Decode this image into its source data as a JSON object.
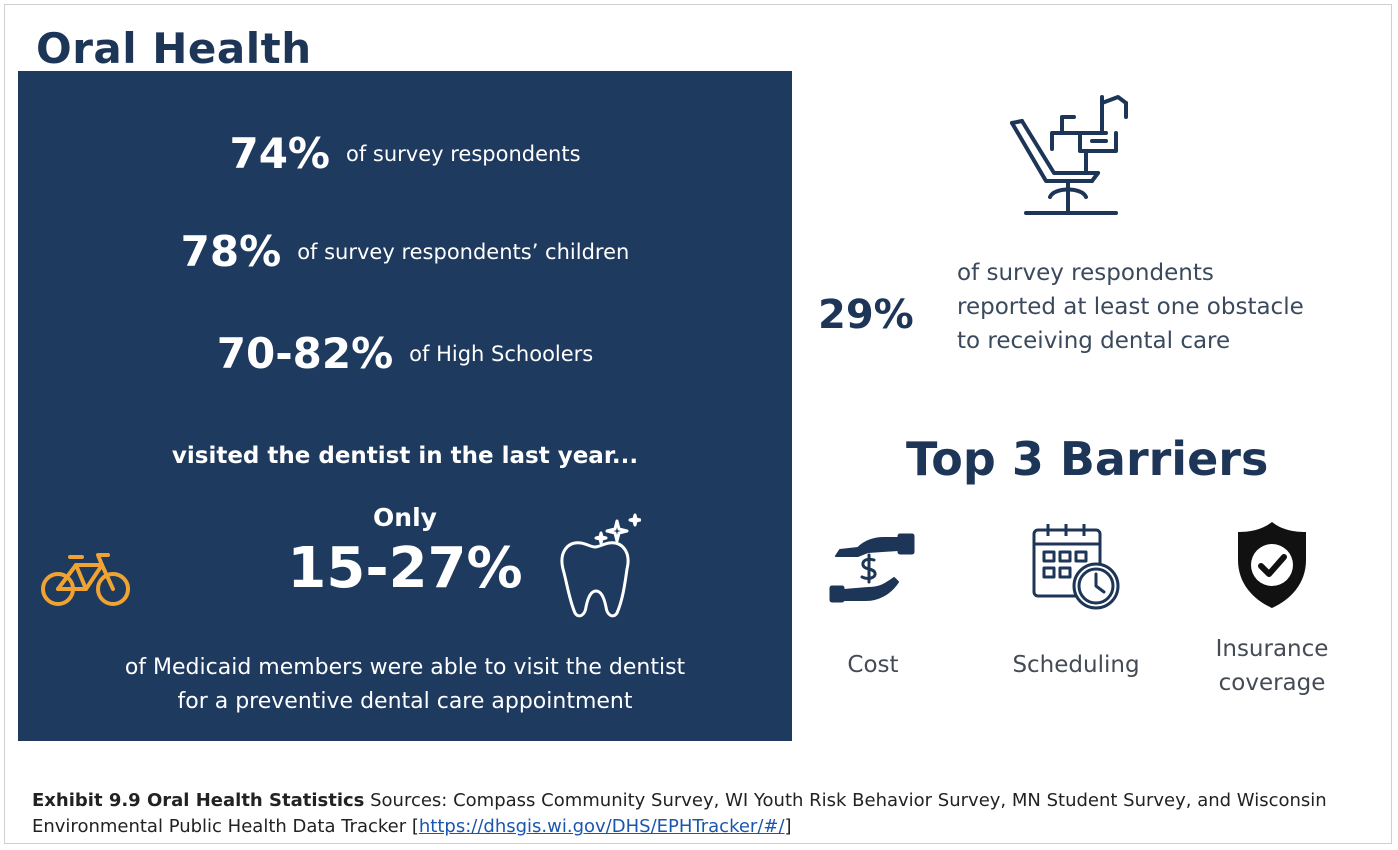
{
  "heading": "Oral Health",
  "left_panel": {
    "stat1_value": "74%",
    "stat1_text": "of survey respondents",
    "stat2_value": "78%",
    "stat2_text": "of  survey respondents’ children",
    "stat3_value": "70-82%",
    "stat3_text": "of High Schoolers",
    "visited_text": "visited the dentist in the last year...",
    "only_label": "Only",
    "only_value": "15-27%",
    "medicaid_line1": "of Medicaid members were able to visit the dentist",
    "medicaid_line2": "for a preventive dental care appointment",
    "accent_bike": "#f0a330",
    "bg_color": "#1e3a5f"
  },
  "obstacle": {
    "value": "29%",
    "line1": "of survey respondents",
    "line2": "reported at least one obstacle",
    "line3": "to receiving dental care"
  },
  "barriers": {
    "title": "Top 3 Barriers",
    "items": [
      {
        "icon": "hand-money-icon",
        "label": "Cost"
      },
      {
        "icon": "calendar-clock-icon",
        "label": "Scheduling"
      },
      {
        "icon": "shield-check-icon",
        "label_line1": "Insurance",
        "label_line2": "coverage"
      }
    ]
  },
  "caption": {
    "label": "Exhibit 9.9 Oral Health Statistics",
    "text": " Sources: Compass Community Survey, WI Youth Risk Behavior Survey, MN Student Survey, and Wisconsin Environmental Public Health Data Tracker [",
    "link": "https://dhsgis.wi.gov/DHS/EPHTracker/#/",
    "close": "]"
  }
}
